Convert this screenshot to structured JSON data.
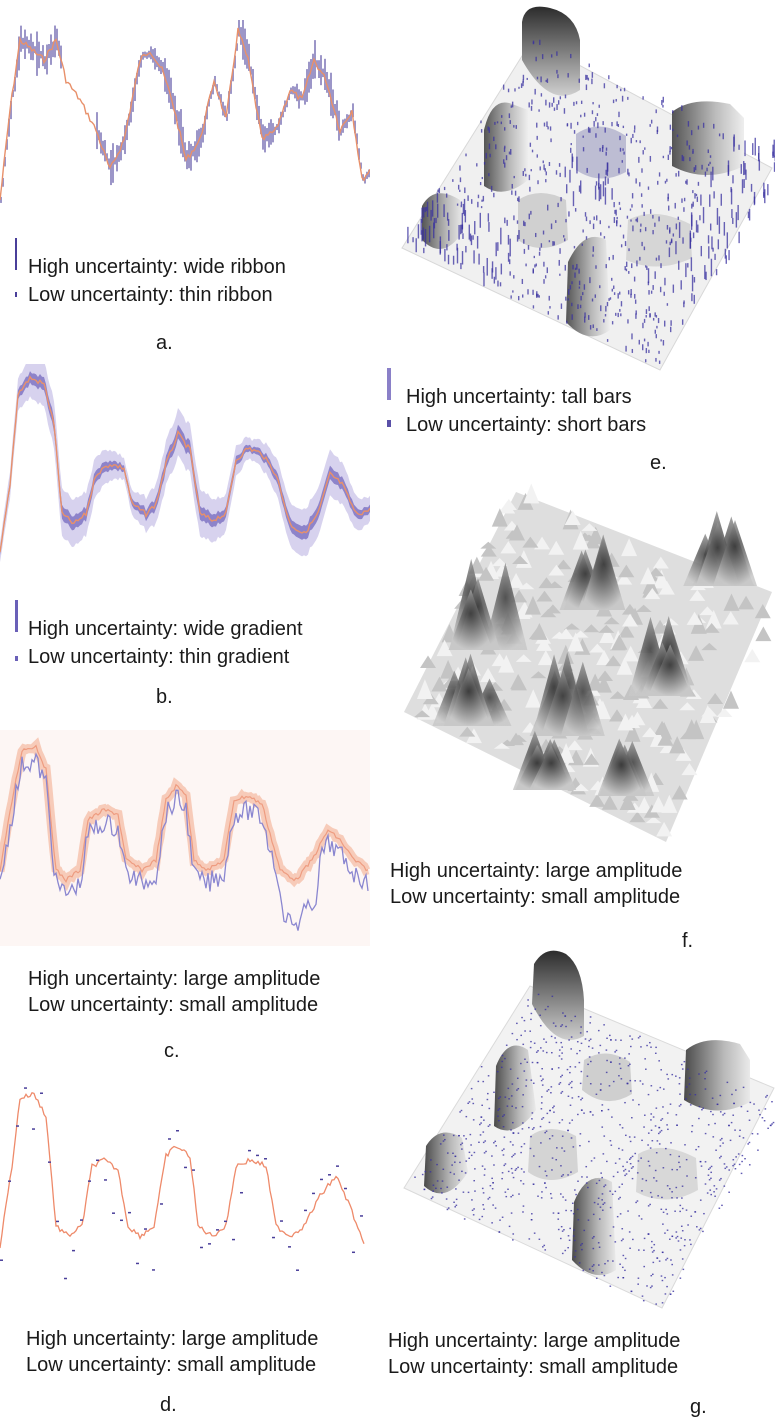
{
  "panels": {
    "a": {
      "label": "a.",
      "high": "High uncertainty:  wide ribbon",
      "low": "Low uncertainty: thin ribbon"
    },
    "b": {
      "label": "b.",
      "high": "High  uncertainty:  wide  gradient",
      "low": "Low uncertainty: thin gradient"
    },
    "c": {
      "label": "c.",
      "high": "High uncertainty: large amplitude",
      "low": "Low uncertainty: small amplitude"
    },
    "d": {
      "label": "d.",
      "high": "High uncertainty: large amplitude",
      "low": "Low uncertainty: small amplitude"
    },
    "e": {
      "label": "e.",
      "high": "High uncertainty: tall bars",
      "low": "Low uncertainty: short bars"
    },
    "f": {
      "label": "f.",
      "high": "High uncertainty:  large amplitude",
      "low": "Low uncertainty: small amplitude"
    },
    "g": {
      "label": "g.",
      "high": "High uncertainty:  large amplitude",
      "low": "Low uncertainty: small amplitude"
    }
  },
  "colors": {
    "line": "#e8906a",
    "band": "#4a3f9a",
    "band_light": "#9b93cf",
    "line_light": "#f3b9a0"
  }
}
